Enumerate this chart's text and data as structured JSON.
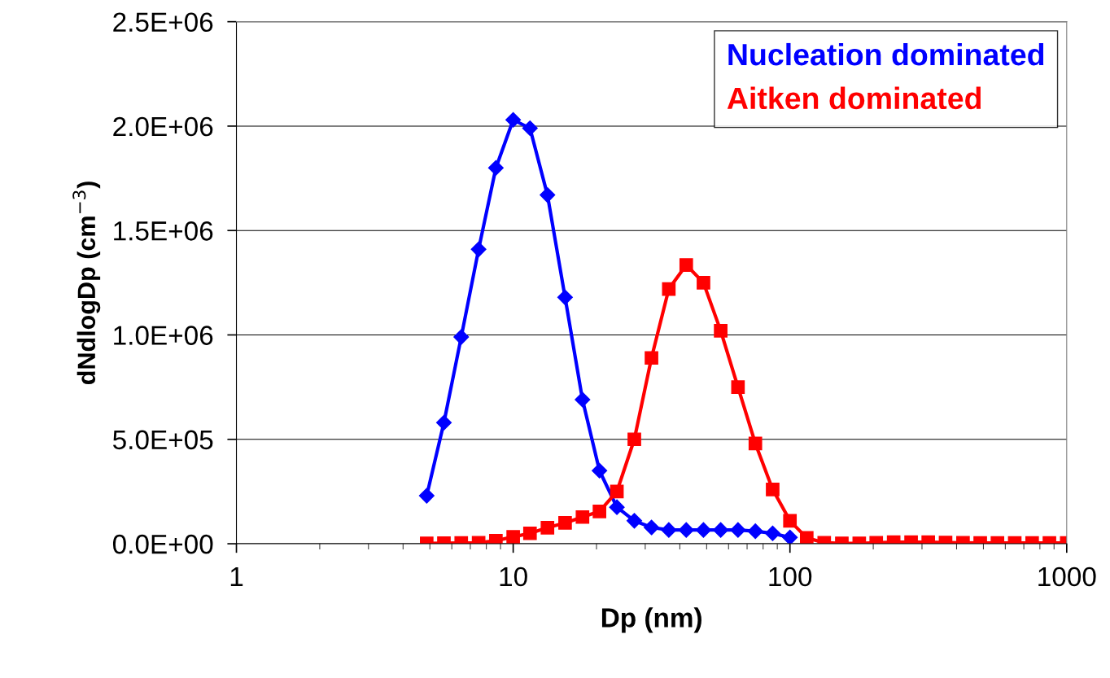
{
  "chart_data": {
    "type": "line",
    "xlabel": "Dp (nm)",
    "ylabel": "dNdlogDp (cm$^{−3}$)",
    "log": "x",
    "xlim": [
      1,
      1000
    ],
    "xticks": [
      1,
      10,
      100,
      1000
    ],
    "ylim": [
      0,
      2500000
    ],
    "yticks": [
      {
        "value": 0,
        "label": "0.0E+00"
      },
      {
        "value": 500000,
        "label": "5.0E+05"
      },
      {
        "value": 1000000,
        "label": "1.0E+06"
      },
      {
        "value": 1500000,
        "label": "1.5E+06"
      },
      {
        "value": 2000000,
        "label": "2.0E+06"
      },
      {
        "value": 2500000,
        "label": "2.5E+06"
      }
    ],
    "grid": "y",
    "legend": "top right",
    "line_style": "solid",
    "series": [
      {
        "name": "Nucleation dominated",
        "color": "#0000ff",
        "marker": "diamond",
        "x": [
          4.87,
          5.62,
          6.49,
          7.5,
          8.66,
          10,
          11.5,
          13.3,
          15.4,
          17.8,
          20.5,
          23.7,
          27.4,
          31.6,
          36.5,
          42.2,
          48.7,
          56.2,
          64.9,
          75,
          86.6,
          100
        ],
        "values": [
          230000,
          580000,
          990000,
          1410000,
          1800000,
          2030000,
          1990000,
          1670000,
          1180000,
          690000,
          350000,
          175000,
          110000,
          78000,
          66000,
          66000,
          66000,
          66000,
          66000,
          60000,
          50000,
          30000
        ]
      },
      {
        "name": "Aitken dominated",
        "color": "#ff0000",
        "marker": "square",
        "x": [
          4.87,
          5.62,
          6.49,
          7.5,
          8.66,
          10,
          11.5,
          13.3,
          15.4,
          17.8,
          20.5,
          23.7,
          27.4,
          31.6,
          36.5,
          42.2,
          48.7,
          56.2,
          64.9,
          75,
          86.6,
          100,
          115,
          133,
          154,
          178,
          205,
          237,
          274,
          316,
          365,
          422,
          487,
          562,
          649,
          750,
          866,
          1000
        ],
        "values": [
          2000,
          3000,
          4000,
          5000,
          15000,
          33000,
          50000,
          77000,
          100000,
          128000,
          155000,
          250000,
          500000,
          890000,
          1220000,
          1335000,
          1250000,
          1020000,
          750000,
          480000,
          260000,
          110000,
          28000,
          5000,
          2000,
          2000,
          5000,
          8000,
          8000,
          8000,
          6000,
          5000,
          4000,
          4000,
          4000,
          4000,
          4000,
          4000
        ]
      }
    ]
  }
}
